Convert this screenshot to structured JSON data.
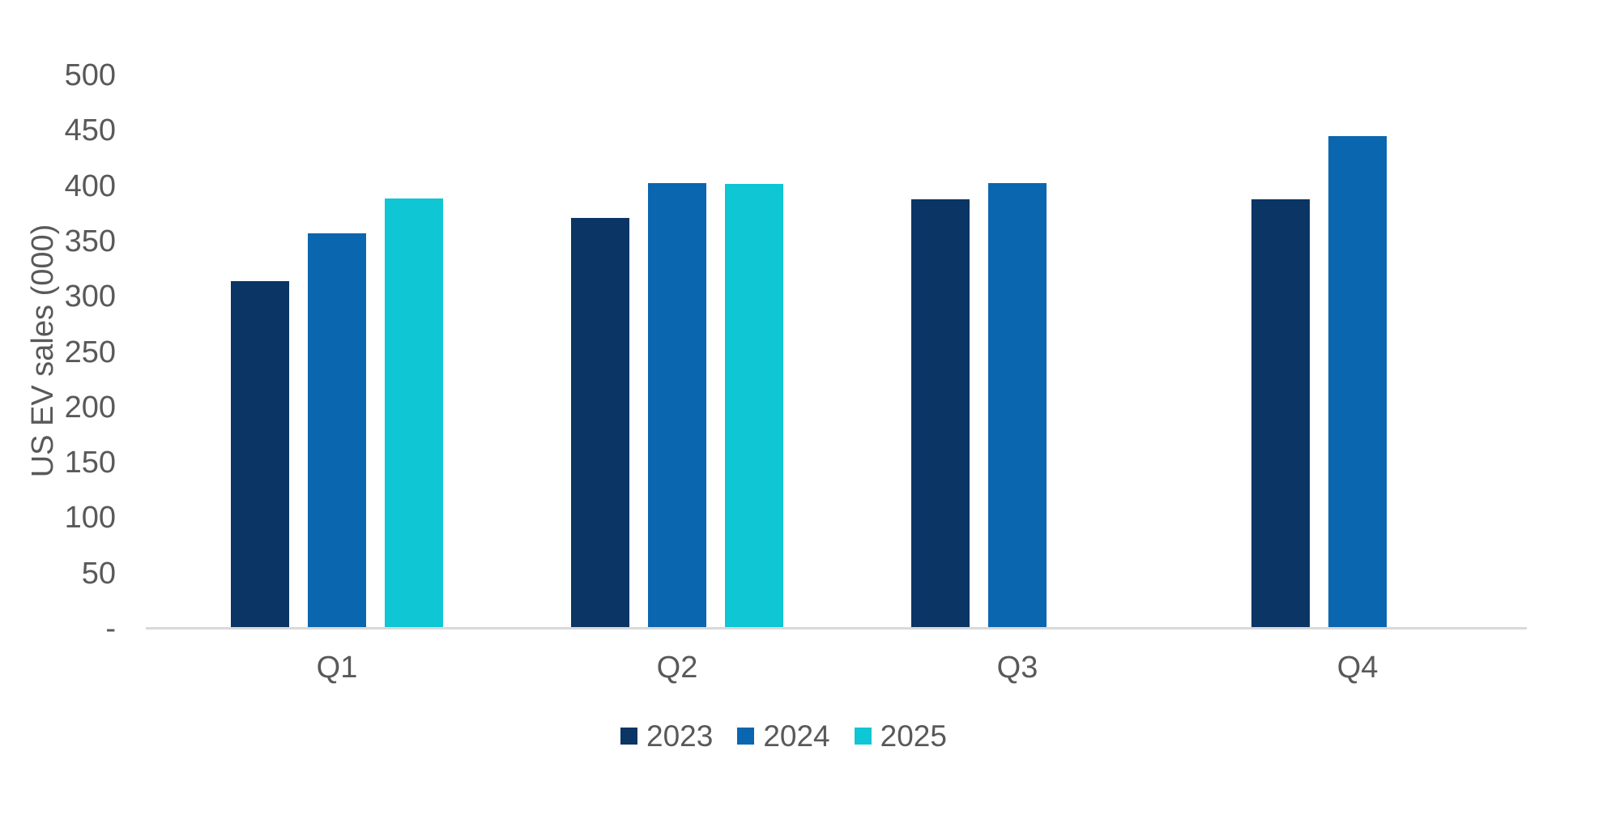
{
  "chart_data": {
    "type": "bar",
    "title": "",
    "xlabel": "",
    "ylabel": "US EV sales (000)",
    "ylim": [
      0,
      500
    ],
    "ytick_interval": 50,
    "yticks": [
      {
        "value": 500,
        "label": "500"
      },
      {
        "value": 450,
        "label": "450"
      },
      {
        "value": 400,
        "label": "400"
      },
      {
        "value": 350,
        "label": "350"
      },
      {
        "value": 300,
        "label": "300"
      },
      {
        "value": 250,
        "label": "250"
      },
      {
        "value": 200,
        "label": "200"
      },
      {
        "value": 150,
        "label": "150"
      },
      {
        "value": 100,
        "label": "100"
      },
      {
        "value": 50,
        "label": "50"
      },
      {
        "value": 0,
        "label": "-"
      }
    ],
    "categories": [
      "Q1",
      "Q2",
      "Q3",
      "Q4"
    ],
    "series": [
      {
        "name": "2023",
        "color": "#0A3565",
        "values": [
          314,
          371,
          388,
          388
        ]
      },
      {
        "name": "2024",
        "color": "#0B66B0",
        "values": [
          357,
          403,
          403,
          445
        ]
      },
      {
        "name": "2025",
        "color": "#0EC6D4",
        "values": [
          389,
          402,
          null,
          null
        ]
      }
    ],
    "legend_position": "bottom",
    "grid": false,
    "colors": {
      "axis_line": "#D9D9D9",
      "tick_text": "#595959",
      "background": "#FFFFFF"
    }
  }
}
